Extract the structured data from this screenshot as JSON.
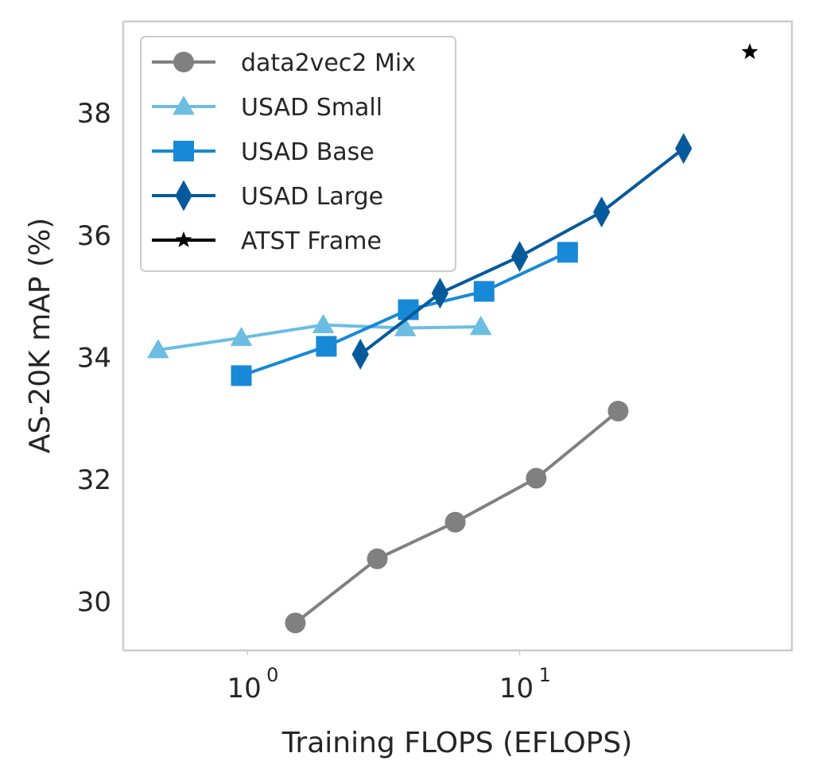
{
  "chart_data": {
    "type": "line",
    "title": "",
    "xlabel": "Training FLOPS (EFLOPS)",
    "ylabel": "AS-20K mAP (%)",
    "xscale": "log",
    "xlim": [
      0.35,
      100
    ],
    "ylim": [
      29.2,
      39.5
    ],
    "grid": false,
    "legend_position": "upper-left",
    "x_ticks": [
      {
        "value": 1,
        "base": "10",
        "exp": "0"
      },
      {
        "value": 10,
        "base": "10",
        "exp": "1"
      }
    ],
    "y_ticks": [
      30,
      32,
      34,
      36,
      38
    ],
    "series": [
      {
        "name": "data2vec2 Mix",
        "color": "#808080",
        "marker": "circle",
        "x": [
          1.5,
          3.0,
          5.8,
          11.5,
          23.0
        ],
        "y": [
          29.65,
          30.7,
          31.3,
          32.02,
          33.12
        ]
      },
      {
        "name": "USAD Small",
        "color": "#6bbde3",
        "marker": "triangle",
        "x": [
          0.47,
          0.95,
          1.9,
          3.8,
          7.2
        ],
        "y": [
          34.12,
          34.32,
          34.53,
          34.48,
          34.5
        ]
      },
      {
        "name": "USAD Base",
        "color": "#1789d6",
        "marker": "square",
        "x": [
          0.95,
          1.95,
          3.9,
          7.4,
          15.0
        ],
        "y": [
          33.7,
          34.18,
          34.78,
          35.08,
          35.72
        ]
      },
      {
        "name": "USAD Large",
        "color": "#065a9c",
        "marker": "diamond",
        "x": [
          2.6,
          5.1,
          10.0,
          20.0,
          40.0
        ],
        "y": [
          34.05,
          35.05,
          35.65,
          36.38,
          37.42
        ]
      },
      {
        "name": "ATST Frame",
        "color": "#000000",
        "marker": "star",
        "x": [
          70.0
        ],
        "y": [
          39.0
        ]
      }
    ]
  }
}
